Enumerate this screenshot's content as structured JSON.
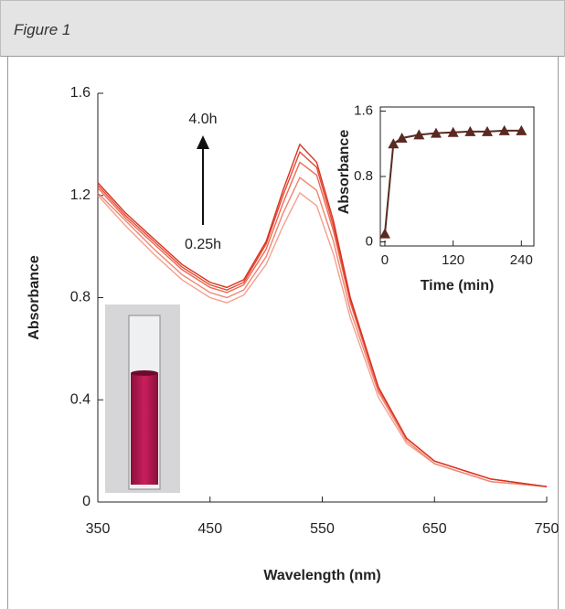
{
  "header": {
    "title": "Figure 1"
  },
  "chart_data": [
    {
      "type": "line",
      "y_label": "Absorbance",
      "x_label": "Wavelength (nm)",
      "annotations": [
        "4.0h",
        "0.25h"
      ],
      "x": [
        350,
        375,
        400,
        425,
        450,
        465,
        480,
        500,
        515,
        530,
        545,
        560,
        575,
        600,
        625,
        650,
        700,
        750
      ],
      "series": [
        {
          "color": "#f4a090",
          "values": [
            1.2,
            1.08,
            0.97,
            0.87,
            0.8,
            0.78,
            0.81,
            0.93,
            1.08,
            1.21,
            1.16,
            0.97,
            0.72,
            0.41,
            0.23,
            0.15,
            0.08,
            0.06
          ]
        },
        {
          "color": "#f08470",
          "values": [
            1.21,
            1.1,
            0.99,
            0.89,
            0.82,
            0.8,
            0.83,
            0.96,
            1.13,
            1.27,
            1.22,
            1.02,
            0.75,
            0.43,
            0.24,
            0.15,
            0.08,
            0.06
          ]
        },
        {
          "color": "#ec6a55",
          "values": [
            1.23,
            1.11,
            1.01,
            0.91,
            0.84,
            0.82,
            0.85,
            0.99,
            1.17,
            1.33,
            1.28,
            1.06,
            0.78,
            0.44,
            0.25,
            0.16,
            0.09,
            0.06
          ]
        },
        {
          "color": "#e24a35",
          "values": [
            1.24,
            1.12,
            1.02,
            0.92,
            0.85,
            0.83,
            0.86,
            1.01,
            1.2,
            1.37,
            1.31,
            1.08,
            0.79,
            0.45,
            0.25,
            0.16,
            0.09,
            0.06
          ]
        },
        {
          "color": "#d8321f",
          "values": [
            1.25,
            1.13,
            1.03,
            0.93,
            0.86,
            0.84,
            0.87,
            1.02,
            1.22,
            1.4,
            1.33,
            1.1,
            0.8,
            0.45,
            0.25,
            0.16,
            0.09,
            0.06
          ]
        }
      ],
      "xlim": [
        350,
        750
      ],
      "xticks": [
        350,
        450,
        550,
        650,
        750
      ],
      "ylim": [
        0,
        1.6
      ],
      "yticks": [
        0,
        0.4,
        0.8,
        1.2,
        1.6
      ]
    },
    {
      "type": "line",
      "y_label": "Absorbance",
      "x_label": "Time (min)",
      "marker": "triangle",
      "x": [
        0,
        15,
        30,
        60,
        90,
        120,
        150,
        180,
        210,
        240
      ],
      "series": [
        {
          "color": "#5a2a22",
          "values": [
            0.1,
            1.2,
            1.27,
            1.31,
            1.33,
            1.34,
            1.35,
            1.35,
            1.36,
            1.36
          ]
        }
      ],
      "xlim": [
        -8,
        262
      ],
      "xticks": [
        0,
        120,
        240
      ],
      "ylim": [
        -0.05,
        1.65
      ],
      "yticks": [
        0,
        0.8,
        1.6
      ]
    }
  ]
}
